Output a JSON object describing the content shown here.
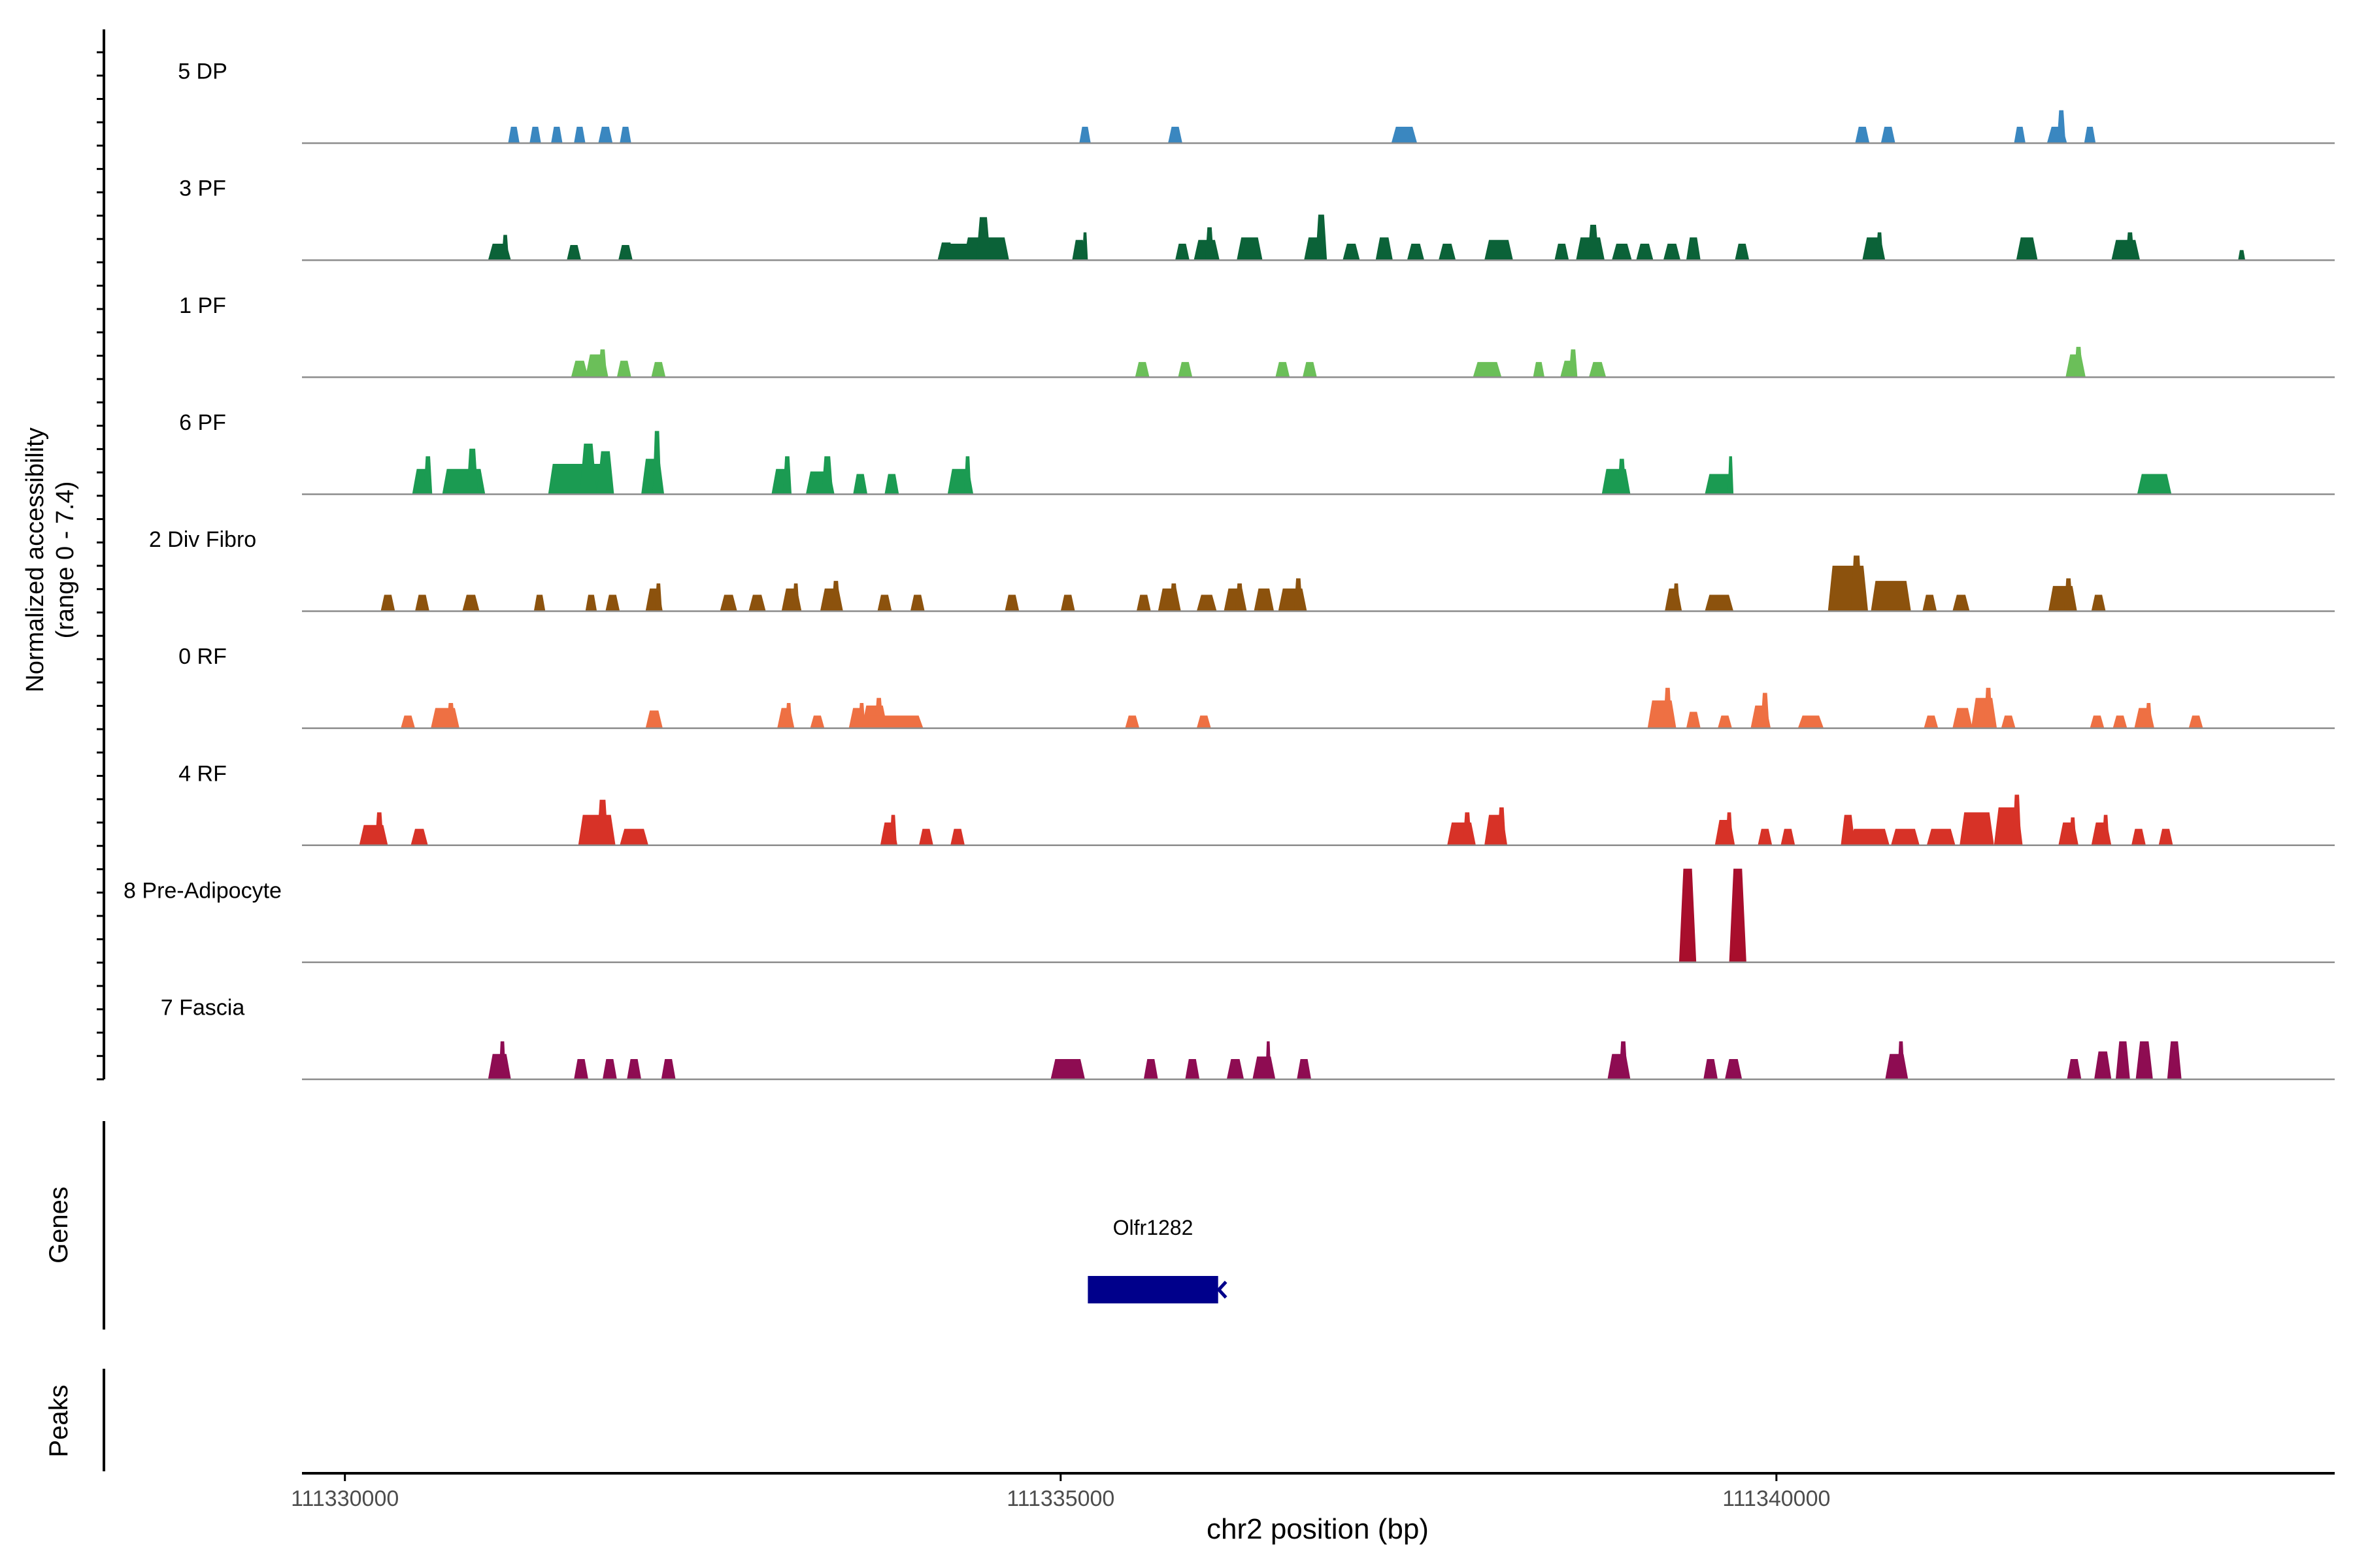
{
  "chart_data": {
    "type": "area",
    "title": "",
    "ylabel_line1": "Normalized accessibility",
    "ylabel_line2": "(range 0 - 7.4)",
    "xlabel": "chr2 position (bp)",
    "xlim": [
      111329700,
      111343900
    ],
    "ylim": [
      0,
      7.4
    ],
    "x_ticks": [
      111330000,
      111335000,
      111340000
    ],
    "x_tick_labels": [
      "111330000",
      "111335000",
      "111340000"
    ],
    "tracks": [
      {
        "name": "5 DP",
        "color": "#3A87C0",
        "peaks": [
          [
            111331180,
            80,
            1.3
          ],
          [
            111331330,
            80,
            1.3
          ],
          [
            111331480,
            80,
            1.3
          ],
          [
            111331640,
            80,
            1.3
          ],
          [
            111331820,
            100,
            1.3
          ],
          [
            111331960,
            80,
            1.3
          ],
          [
            111335170,
            80,
            1.3
          ],
          [
            111335800,
            100,
            1.3
          ],
          [
            111337400,
            180,
            1.3
          ],
          [
            111340600,
            100,
            1.3
          ],
          [
            111340780,
            100,
            1.3
          ],
          [
            111341700,
            80,
            1.3
          ],
          [
            111341960,
            140,
            1.3
          ],
          [
            111341990,
            60,
            2.6
          ],
          [
            111342190,
            80,
            1.3
          ]
        ]
      },
      {
        "name": "3 PF",
        "color": "#0B6238",
        "peaks": [
          [
            111331080,
            160,
            1.3
          ],
          [
            111331120,
            50,
            2.0
          ],
          [
            111331600,
            100,
            1.2
          ],
          [
            111331960,
            100,
            1.2
          ],
          [
            111335130,
            100,
            1.6
          ],
          [
            111335170,
            40,
            2.2
          ],
          [
            111334200,
            120,
            1.4
          ],
          [
            111334300,
            200,
            1.3
          ],
          [
            111334480,
            320,
            1.8
          ],
          [
            111334460,
            100,
            3.4
          ],
          [
            111335850,
            100,
            1.3
          ],
          [
            111336020,
            180,
            1.6
          ],
          [
            111336040,
            60,
            2.6
          ],
          [
            111336320,
            180,
            1.8
          ],
          [
            111336780,
            160,
            1.8
          ],
          [
            111336820,
            80,
            3.6
          ],
          [
            111337030,
            120,
            1.3
          ],
          [
            111337260,
            120,
            1.8
          ],
          [
            111337480,
            120,
            1.3
          ],
          [
            111337700,
            120,
            1.3
          ],
          [
            111338060,
            200,
            1.6
          ],
          [
            111338500,
            100,
            1.3
          ],
          [
            111338700,
            200,
            1.8
          ],
          [
            111338720,
            80,
            2.8
          ],
          [
            111338920,
            140,
            1.3
          ],
          [
            111339080,
            120,
            1.3
          ],
          [
            111339270,
            120,
            1.3
          ],
          [
            111339420,
            100,
            1.8
          ],
          [
            111339760,
            100,
            1.3
          ],
          [
            111340680,
            160,
            1.8
          ],
          [
            111340720,
            50,
            2.2
          ],
          [
            111341750,
            150,
            1.8
          ],
          [
            111342440,
            200,
            1.6
          ],
          [
            111342470,
            60,
            2.2
          ],
          [
            111343250,
            50,
            0.8
          ]
        ]
      },
      {
        "name": "1 PF",
        "color": "#6BBF59",
        "peaks": [
          [
            111331640,
            120,
            1.3
          ],
          [
            111331760,
            160,
            1.8
          ],
          [
            111331800,
            60,
            2.2
          ],
          [
            111331950,
            100,
            1.3
          ],
          [
            111332190,
            100,
            1.2
          ],
          [
            111335570,
            100,
            1.2
          ],
          [
            111335870,
            100,
            1.2
          ],
          [
            111336550,
            100,
            1.2
          ],
          [
            111336740,
            100,
            1.2
          ],
          [
            111337980,
            200,
            1.2
          ],
          [
            111338340,
            80,
            1.2
          ],
          [
            111338550,
            120,
            1.3
          ],
          [
            111338580,
            60,
            2.2
          ],
          [
            111338750,
            120,
            1.2
          ],
          [
            111342090,
            140,
            1.8
          ],
          [
            111342110,
            60,
            2.4
          ]
        ]
      },
      {
        "name": "6 PF",
        "color": "#1B9B52",
        "peaks": [
          [
            111330540,
            140,
            2.0
          ],
          [
            111330580,
            60,
            3.0
          ],
          [
            111330830,
            300,
            2.0
          ],
          [
            111330890,
            80,
            3.6
          ],
          [
            111331620,
            400,
            2.4
          ],
          [
            111331700,
            120,
            4.0
          ],
          [
            111331820,
            120,
            3.4
          ],
          [
            111332150,
            160,
            2.8
          ],
          [
            111332180,
            60,
            5.0
          ],
          [
            111333050,
            140,
            2.0
          ],
          [
            111333090,
            60,
            3.0
          ],
          [
            111333320,
            200,
            1.8
          ],
          [
            111333370,
            80,
            3.0
          ],
          [
            111333600,
            100,
            1.6
          ],
          [
            111333820,
            100,
            1.6
          ],
          [
            111334300,
            180,
            2.0
          ],
          [
            111334350,
            50,
            3.0
          ],
          [
            111338880,
            200,
            2.0
          ],
          [
            111338920,
            60,
            2.8
          ],
          [
            111339600,
            200,
            1.6
          ],
          [
            111339680,
            40,
            3.0
          ],
          [
            111342640,
            240,
            1.6
          ]
        ]
      },
      {
        "name": "2 Div Fibro",
        "color": "#8C520D",
        "peaks": [
          [
            111330300,
            100,
            1.3
          ],
          [
            111330540,
            100,
            1.3
          ],
          [
            111330880,
            120,
            1.3
          ],
          [
            111331360,
            80,
            1.3
          ],
          [
            111331720,
            80,
            1.3
          ],
          [
            111331870,
            100,
            1.3
          ],
          [
            111332160,
            120,
            1.8
          ],
          [
            111332190,
            50,
            2.2
          ],
          [
            111332680,
            120,
            1.3
          ],
          [
            111332880,
            120,
            1.3
          ],
          [
            111333120,
            140,
            1.8
          ],
          [
            111333150,
            50,
            2.2
          ],
          [
            111333400,
            160,
            1.8
          ],
          [
            111333430,
            60,
            2.4
          ],
          [
            111333770,
            100,
            1.3
          ],
          [
            111334000,
            100,
            1.3
          ],
          [
            111334660,
            100,
            1.3
          ],
          [
            111335050,
            100,
            1.3
          ],
          [
            111335580,
            100,
            1.3
          ],
          [
            111335760,
            160,
            1.8
          ],
          [
            111335790,
            60,
            2.2
          ],
          [
            111336020,
            140,
            1.3
          ],
          [
            111336220,
            160,
            1.8
          ],
          [
            111336250,
            60,
            2.2
          ],
          [
            111336420,
            140,
            1.8
          ],
          [
            111336620,
            200,
            1.8
          ],
          [
            111336660,
            60,
            2.6
          ],
          [
            111339280,
            120,
            1.8
          ],
          [
            111339300,
            50,
            2.2
          ],
          [
            111339600,
            200,
            1.3
          ],
          [
            111340500,
            280,
            3.6
          ],
          [
            111340560,
            80,
            4.4
          ],
          [
            111340800,
            280,
            2.4
          ],
          [
            111341070,
            100,
            1.3
          ],
          [
            111341290,
            120,
            1.3
          ],
          [
            111342000,
            200,
            2.0
          ],
          [
            111342040,
            60,
            2.6
          ],
          [
            111342250,
            100,
            1.3
          ]
        ]
      },
      {
        "name": "0 RF",
        "color": "#EE7043",
        "peaks": [
          [
            111330440,
            100,
            1.0
          ],
          [
            111330700,
            200,
            1.6
          ],
          [
            111330740,
            60,
            2.0
          ],
          [
            111332160,
            120,
            1.4
          ],
          [
            111333080,
            120,
            1.6
          ],
          [
            111333100,
            50,
            2.0
          ],
          [
            111333300,
            100,
            1.0
          ],
          [
            111333580,
            120,
            1.6
          ],
          [
            111333610,
            50,
            2.0
          ],
          [
            111333700,
            180,
            1.8
          ],
          [
            111333730,
            60,
            2.4
          ],
          [
            111333840,
            400,
            1.0
          ],
          [
            111335500,
            100,
            1.0
          ],
          [
            111336000,
            100,
            1.0
          ],
          [
            111339200,
            200,
            2.2
          ],
          [
            111339240,
            60,
            3.2
          ],
          [
            111339420,
            100,
            1.3
          ],
          [
            111339640,
            100,
            1.0
          ],
          [
            111339890,
            140,
            1.8
          ],
          [
            111339920,
            60,
            2.8
          ],
          [
            111340240,
            180,
            1.0
          ],
          [
            111341080,
            100,
            1.0
          ],
          [
            111341300,
            140,
            1.6
          ],
          [
            111341450,
            180,
            2.4
          ],
          [
            111341480,
            60,
            3.2
          ],
          [
            111341620,
            100,
            1.0
          ],
          [
            111342240,
            100,
            1.0
          ],
          [
            111342400,
            100,
            1.0
          ],
          [
            111342570,
            140,
            1.6
          ],
          [
            111342600,
            50,
            2.0
          ],
          [
            111342930,
            100,
            1.0
          ]
        ]
      },
      {
        "name": "4 RF",
        "color": "#D73227",
        "peaks": [
          [
            111330200,
            200,
            1.6
          ],
          [
            111330240,
            60,
            2.6
          ],
          [
            111330520,
            120,
            1.3
          ],
          [
            111331760,
            260,
            2.4
          ],
          [
            111331800,
            80,
            3.6
          ],
          [
            111332020,
            200,
            1.3
          ],
          [
            111333800,
            120,
            1.8
          ],
          [
            111333830,
            50,
            2.4
          ],
          [
            111334060,
            100,
            1.3
          ],
          [
            111334280,
            100,
            1.3
          ],
          [
            111337800,
            200,
            1.8
          ],
          [
            111337840,
            60,
            2.6
          ],
          [
            111338040,
            160,
            2.4
          ],
          [
            111338080,
            60,
            3.0
          ],
          [
            111339640,
            140,
            2.0
          ],
          [
            111339670,
            50,
            2.6
          ],
          [
            111339920,
            100,
            1.3
          ],
          [
            111340080,
            100,
            1.3
          ],
          [
            111340500,
            100,
            2.4
          ],
          [
            111340650,
            280,
            1.3
          ],
          [
            111340900,
            200,
            1.3
          ],
          [
            111341150,
            200,
            1.3
          ],
          [
            111341400,
            240,
            2.6
          ],
          [
            111341620,
            200,
            3.0
          ],
          [
            111341680,
            60,
            4.0
          ],
          [
            111342040,
            140,
            1.8
          ],
          [
            111342070,
            50,
            2.2
          ],
          [
            111342270,
            140,
            1.8
          ],
          [
            111342300,
            50,
            2.4
          ],
          [
            111342530,
            100,
            1.3
          ],
          [
            111342720,
            100,
            1.3
          ]
        ]
      },
      {
        "name": "8 Pre-Adipocyte",
        "color": "#A80E2C",
        "peaks": [
          [
            111339380,
            120,
            7.4
          ],
          [
            111339730,
            120,
            7.4
          ]
        ]
      },
      {
        "name": "7 Fascia",
        "color": "#8E0C52",
        "peaks": [
          [
            111331080,
            160,
            2.0
          ],
          [
            111331100,
            50,
            3.0
          ],
          [
            111331650,
            100,
            1.6
          ],
          [
            111331850,
            100,
            1.6
          ],
          [
            111332020,
            100,
            1.6
          ],
          [
            111332260,
            100,
            1.6
          ],
          [
            111335050,
            240,
            1.6
          ],
          [
            111335630,
            100,
            1.6
          ],
          [
            111335920,
            100,
            1.6
          ],
          [
            111336220,
            120,
            1.6
          ],
          [
            111336420,
            160,
            1.8
          ],
          [
            111336450,
            40,
            3.0
          ],
          [
            111336700,
            100,
            1.6
          ],
          [
            111338900,
            160,
            2.0
          ],
          [
            111338930,
            60,
            3.0
          ],
          [
            111339540,
            100,
            1.6
          ],
          [
            111339700,
            120,
            1.6
          ],
          [
            111340840,
            160,
            2.0
          ],
          [
            111340870,
            50,
            3.0
          ],
          [
            111342080,
            100,
            1.6
          ],
          [
            111342280,
            120,
            2.2
          ],
          [
            111342420,
            100,
            3.0
          ],
          [
            111342570,
            120,
            3.0
          ],
          [
            111342780,
            100,
            3.0
          ]
        ]
      }
    ],
    "genes": {
      "label": "Genes",
      "items": [
        {
          "name": "Olfr1282",
          "start": 111335190,
          "end": 111336100,
          "strand": "-",
          "color": "#00008B"
        }
      ]
    },
    "peaks_track": {
      "label": "Peaks",
      "items": []
    }
  }
}
